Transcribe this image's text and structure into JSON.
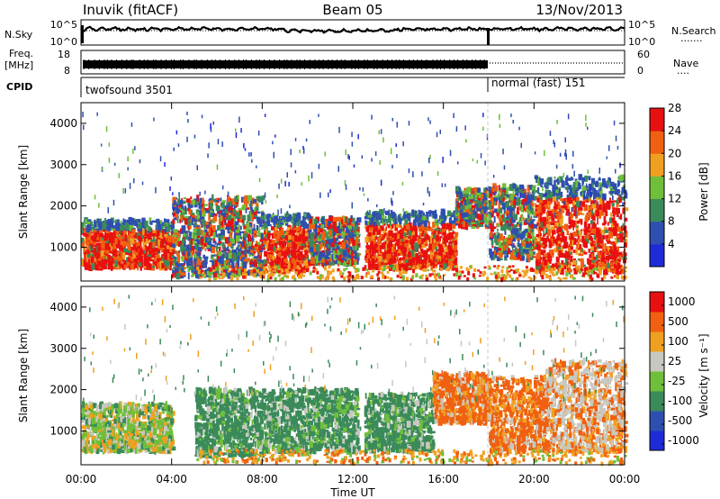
{
  "header": {
    "station": "Inuvik (fitACF)",
    "beam": "Beam 05",
    "date": "13/Nov/2013"
  },
  "sky_panel": {
    "left_label": "N.Sky",
    "right_label": "N.Search",
    "right_label_dots": "·······",
    "ytick_top": "10^5",
    "ytick_bottom": "10^0"
  },
  "freq_panel": {
    "left_label_1": "Freq.",
    "left_label_2": "[MHz]",
    "left_tick_top": "18",
    "left_tick_bottom": "8",
    "right_label": "Nave",
    "right_label_dots": "····",
    "right_tick_top": "60",
    "right_tick_bottom": "0"
  },
  "cpid": {
    "label": "CPID",
    "segments": [
      {
        "name": "twofsound 3501",
        "start_hour": 0,
        "end_hour": 18
      },
      {
        "name": "normal (fast) 151",
        "start_hour": 18,
        "end_hour": 24
      }
    ]
  },
  "chart_data": [
    {
      "type": "heatmap",
      "title": "",
      "quantity": "power",
      "xlabel": "Time UT",
      "ylabel": "Slant Range [km]",
      "xlim": [
        0,
        24
      ],
      "ylim": [
        180,
        4500
      ],
      "yticks": [
        "1000",
        "2000",
        "3000",
        "4000"
      ],
      "colorbar": {
        "label": "Power [dB]",
        "ticks": [
          "4",
          "8",
          "12",
          "16",
          "20",
          "24",
          "28"
        ],
        "colors": [
          "#1f2bd6",
          "#2f4fb0",
          "#3a8a5a",
          "#6fbf3a",
          "#f0a020",
          "#f06010",
          "#e81010"
        ]
      },
      "regions": [
        {
          "t": [
            0.0,
            4.0
          ],
          "r": [
            500,
            1650
          ],
          "level": "high"
        },
        {
          "t": [
            4.0,
            8.0
          ],
          "r": [
            300,
            2200
          ],
          "level": "mixed"
        },
        {
          "t": [
            8.0,
            10.0
          ],
          "r": [
            400,
            1800
          ],
          "level": "high"
        },
        {
          "t": [
            10.0,
            12.2
          ],
          "r": [
            600,
            1700
          ],
          "level": "mixed"
        },
        {
          "t": [
            12.5,
            16.5
          ],
          "r": [
            500,
            1850
          ],
          "level": "high"
        },
        {
          "t": [
            16.5,
            18.0
          ],
          "r": [
            1500,
            2400
          ],
          "level": "mixed"
        },
        {
          "t": [
            18.0,
            20.0
          ],
          "r": [
            700,
            2500
          ],
          "level": "mixed"
        },
        {
          "t": [
            20.0,
            24.0
          ],
          "r": [
            400,
            2700
          ],
          "level": "high"
        }
      ]
    },
    {
      "type": "heatmap",
      "title": "",
      "quantity": "velocity",
      "xlabel": "Time UT",
      "ylabel": "Slant Range [km]",
      "xlim": [
        0,
        24
      ],
      "ylim": [
        180,
        4500
      ],
      "xticks": [
        "00:00",
        "04:00",
        "08:00",
        "12:00",
        "16:00",
        "20:00",
        "00:00"
      ],
      "yticks": [
        "1000",
        "2000",
        "3000",
        "4000"
      ],
      "colorbar": {
        "label": "Velocity [m s⁻¹]",
        "ticks": [
          "1000",
          "500",
          "100",
          "25",
          "-25",
          "-100",
          "-500",
          "-1000"
        ],
        "colors": [
          "#1f2bd6",
          "#2f4fb0",
          "#3a8a5a",
          "#6fbf3a",
          "#c8c8c0",
          "#f0a020",
          "#f06010",
          "#e81010"
        ]
      },
      "regions": [
        {
          "t": [
            0.0,
            4.0
          ],
          "r": [
            500,
            1650
          ],
          "level": "mixed"
        },
        {
          "t": [
            5.0,
            8.0
          ],
          "r": [
            400,
            2000
          ],
          "level": "green"
        },
        {
          "t": [
            8.0,
            12.2
          ],
          "r": [
            500,
            2000
          ],
          "level": "green"
        },
        {
          "t": [
            12.5,
            15.5
          ],
          "r": [
            500,
            1900
          ],
          "level": "green"
        },
        {
          "t": [
            15.5,
            18.0
          ],
          "r": [
            1200,
            2400
          ],
          "level": "orange"
        },
        {
          "t": [
            18.0,
            20.5
          ],
          "r": [
            500,
            2300
          ],
          "level": "orange"
        },
        {
          "t": [
            20.5,
            24.0
          ],
          "r": [
            500,
            2700
          ],
          "level": "gray-orange"
        }
      ]
    }
  ]
}
